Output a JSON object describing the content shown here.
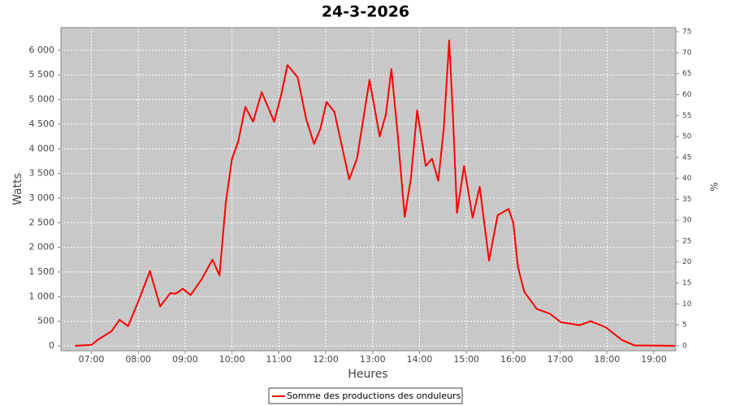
{
  "chart_data": {
    "type": "line",
    "title": "24-3-2026",
    "x_label": "Heures",
    "y_label": "Watts",
    "y2_label": "%",
    "x": [
      "06:39",
      "07:00",
      "07:08",
      "07:16",
      "07:26",
      "07:36",
      "07:47",
      "08:00",
      "08:15",
      "08:28",
      "08:41",
      "08:48",
      "08:57",
      "09:07",
      "09:21",
      "09:35",
      "09:44",
      "09:52",
      "10:00",
      "10:08",
      "10:17",
      "10:27",
      "10:38",
      "10:54",
      "11:03",
      "11:11",
      "11:24",
      "11:35",
      "11:45",
      "11:53",
      "12:01",
      "12:11",
      "12:20",
      "12:30",
      "12:40",
      "12:56",
      "13:09",
      "13:17",
      "13:24",
      "13:32",
      "13:41",
      "13:49",
      "13:57",
      "14:08",
      "14:16",
      "14:24",
      "14:31",
      "14:38",
      "14:43",
      "14:48",
      "14:57",
      "15:08",
      "15:17",
      "15:29",
      "15:40",
      "15:54",
      "16:00",
      "16:06",
      "16:14",
      "16:30",
      "16:47",
      "17:01",
      "17:25",
      "17:39",
      "17:58",
      "18:19",
      "18:35",
      "19:27"
    ],
    "series": [
      {
        "name": "Somme des productions des onduleurs",
        "color": "#ff0000",
        "values": [
          0,
          20,
          120,
          200,
          300,
          530,
          400,
          900,
          1520,
          800,
          1070,
          1060,
          1160,
          1030,
          1350,
          1750,
          1430,
          2900,
          3800,
          4150,
          4850,
          4550,
          5150,
          4550,
          5100,
          5700,
          5450,
          4600,
          4100,
          4400,
          4950,
          4750,
          4100,
          3380,
          3800,
          5400,
          4250,
          4700,
          5620,
          4300,
          2620,
          3400,
          4780,
          3650,
          3800,
          3350,
          4400,
          6200,
          4600,
          2700,
          3650,
          2600,
          3230,
          1730,
          2650,
          2780,
          2500,
          1600,
          1100,
          750,
          650,
          480,
          420,
          500,
          380,
          120,
          10,
          0
        ]
      }
    ],
    "xlim": [
      "06:21",
      "19:28"
    ],
    "xticks": [
      "07:00",
      "08:00",
      "09:00",
      "10:00",
      "11:00",
      "12:00",
      "13:00",
      "14:00",
      "15:00",
      "16:00",
      "17:00",
      "18:00",
      "19:00"
    ],
    "ylim": [
      -100,
      6460
    ],
    "yticks": [
      0,
      500,
      {
        "value": 1000,
        "label": "1 000"
      },
      {
        "value": 1500,
        "label": "1 500"
      },
      {
        "value": 2000,
        "label": "2 000"
      },
      {
        "value": 2500,
        "label": "2 500"
      },
      {
        "value": 3000,
        "label": "3 000"
      },
      {
        "value": 3500,
        "label": "3 500"
      },
      {
        "value": 4000,
        "label": "4 000"
      },
      {
        "value": 4500,
        "label": "4 500"
      },
      {
        "value": 5000,
        "label": "5 000"
      },
      {
        "value": 5500,
        "label": "5 500"
      },
      {
        "value": 6000,
        "label": "6 000"
      }
    ],
    "y2lim": [
      -1.2,
      76
    ],
    "y2ticks": [
      0,
      5,
      10,
      15,
      20,
      25,
      30,
      35,
      40,
      45,
      50,
      55,
      60,
      65,
      70,
      75
    ],
    "grid": true
  }
}
